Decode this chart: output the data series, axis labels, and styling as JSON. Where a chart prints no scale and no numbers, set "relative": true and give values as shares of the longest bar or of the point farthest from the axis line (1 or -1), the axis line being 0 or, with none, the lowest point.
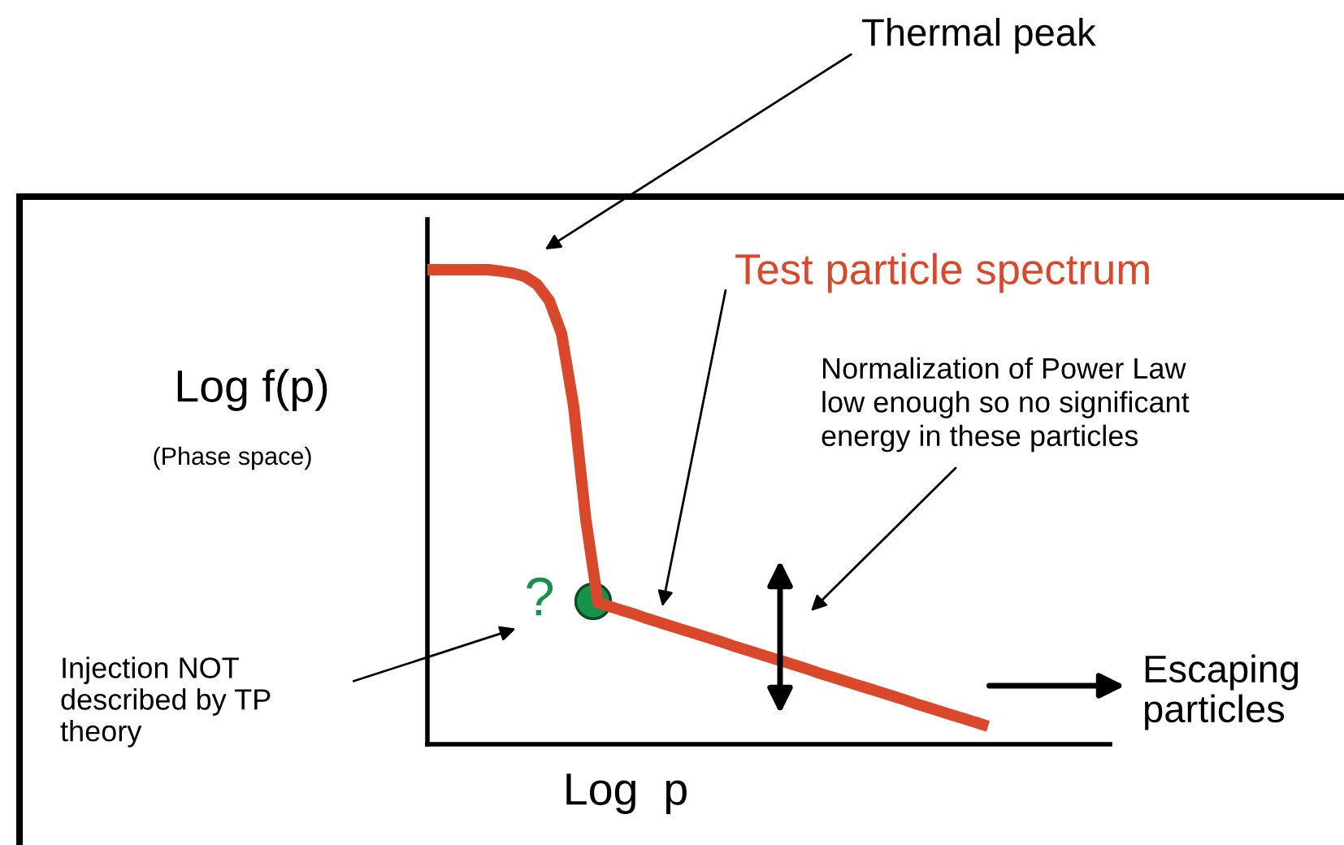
{
  "chart_data": {
    "type": "line",
    "relative": true,
    "xlabel": "Log  p",
    "ylabel": "Log f(p)",
    "grid": false,
    "categories": [
      null,
      null,
      null,
      null,
      null,
      null,
      null,
      null,
      null,
      null,
      null,
      null,
      null,
      null,
      null,
      null,
      null,
      null,
      null,
      null,
      null,
      null,
      null,
      null,
      null,
      null,
      null,
      null,
      null,
      null,
      null,
      null,
      null,
      null,
      null,
      null,
      null,
      null,
      null,
      null,
      null,
      null,
      null,
      null,
      null,
      null,
      null
    ],
    "series": [
      {
        "name": "Test particle spectrum",
        "color": "#d9482b",
        "line_style": "solid",
        "values": [
          1.0,
          1.0,
          1.0,
          1.0,
          1.0,
          1.0,
          0.997,
          0.993,
          0.986,
          0.969,
          0.935,
          0.866,
          0.712,
          0.473,
          0.298,
          0.29,
          0.282,
          0.274,
          0.265,
          0.257,
          0.249,
          0.241,
          0.233,
          0.225,
          0.217,
          0.208,
          0.2,
          0.192,
          0.184,
          0.176,
          0.168,
          0.16,
          0.151,
          0.143,
          0.135,
          0.127,
          0.119,
          0.111,
          0.103,
          0.095,
          0.086,
          0.078,
          0.07,
          0.062,
          0.054,
          0.046,
          0.038
        ]
      }
    ],
    "annotations": [
      "Thermal peak",
      "(Phase space)",
      "Normalization of Power Law\nlow enough so no significant\nenergy in these particles",
      "?",
      "Injection NOT\ndescribed by TP\ntheory",
      "Escaping\nparticles"
    ]
  }
}
